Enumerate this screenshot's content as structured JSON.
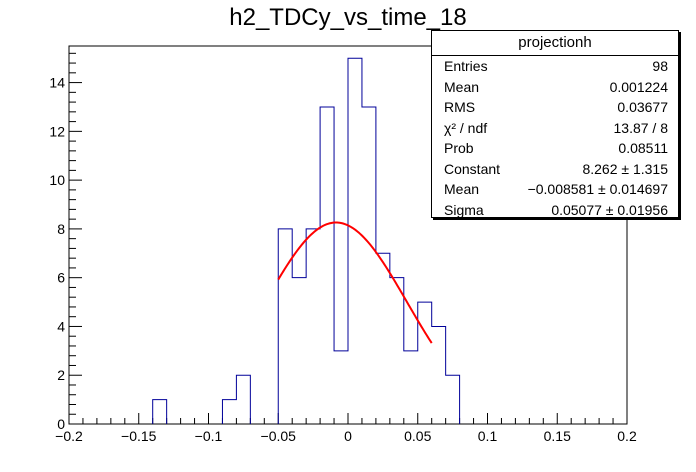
{
  "chart_data": {
    "type": "histogram",
    "title": "h2_TDCy_vs_time_18",
    "xlim": [
      -0.2,
      0.2
    ],
    "ylim": [
      0,
      15.5
    ],
    "bin_width": 0.01,
    "x_ticks": [
      -0.2,
      -0.15,
      -0.1,
      -0.05,
      0,
      0.05,
      0.1,
      0.15,
      0.2
    ],
    "x_tick_labels": [
      "−0.2",
      "−0.15",
      "−0.1",
      "−0.05",
      "0",
      "0.05",
      "0.1",
      "0.15",
      "0.2"
    ],
    "y_ticks": [
      0,
      2,
      4,
      6,
      8,
      10,
      12,
      14
    ],
    "y_tick_labels": [
      "0",
      "2",
      "4",
      "6",
      "8",
      "10",
      "12",
      "14"
    ],
    "bins": [
      {
        "low": -0.14,
        "value": 1
      },
      {
        "low": -0.09,
        "value": 1
      },
      {
        "low": -0.08,
        "value": 2
      },
      {
        "low": -0.05,
        "value": 8
      },
      {
        "low": -0.04,
        "value": 6
      },
      {
        "low": -0.03,
        "value": 8
      },
      {
        "low": -0.02,
        "value": 13
      },
      {
        "low": -0.01,
        "value": 3
      },
      {
        "low": 0.0,
        "value": 15
      },
      {
        "low": 0.01,
        "value": 13
      },
      {
        "low": 0.02,
        "value": 7
      },
      {
        "low": 0.03,
        "value": 6
      },
      {
        "low": 0.04,
        "value": 3
      },
      {
        "low": 0.05,
        "value": 5
      },
      {
        "low": 0.06,
        "value": 4
      },
      {
        "low": 0.07,
        "value": 2
      }
    ],
    "fit": {
      "function": "gaus",
      "constant": 8.262,
      "mean": -0.008581,
      "sigma": 0.05077,
      "x_range": [
        -0.05,
        0.06
      ],
      "color": "#ff0000"
    },
    "histogram_color": "#000099"
  },
  "stats_box": {
    "title": "projectionh",
    "rows": [
      {
        "label": "Entries",
        "value": "98"
      },
      {
        "label": "Mean",
        "value": "0.001224"
      },
      {
        "label": "RMS",
        "value": "0.03677"
      },
      {
        "label": "χ² / ndf",
        "value": "13.87 / 8"
      },
      {
        "label": "Prob",
        "value": "0.08511"
      },
      {
        "label": "Constant",
        "value": "8.262 ± 1.315"
      },
      {
        "label": "Mean",
        "value": "−0.008581 ± 0.014697"
      },
      {
        "label": "Sigma",
        "value": "0.05077 ± 0.01956"
      }
    ]
  }
}
